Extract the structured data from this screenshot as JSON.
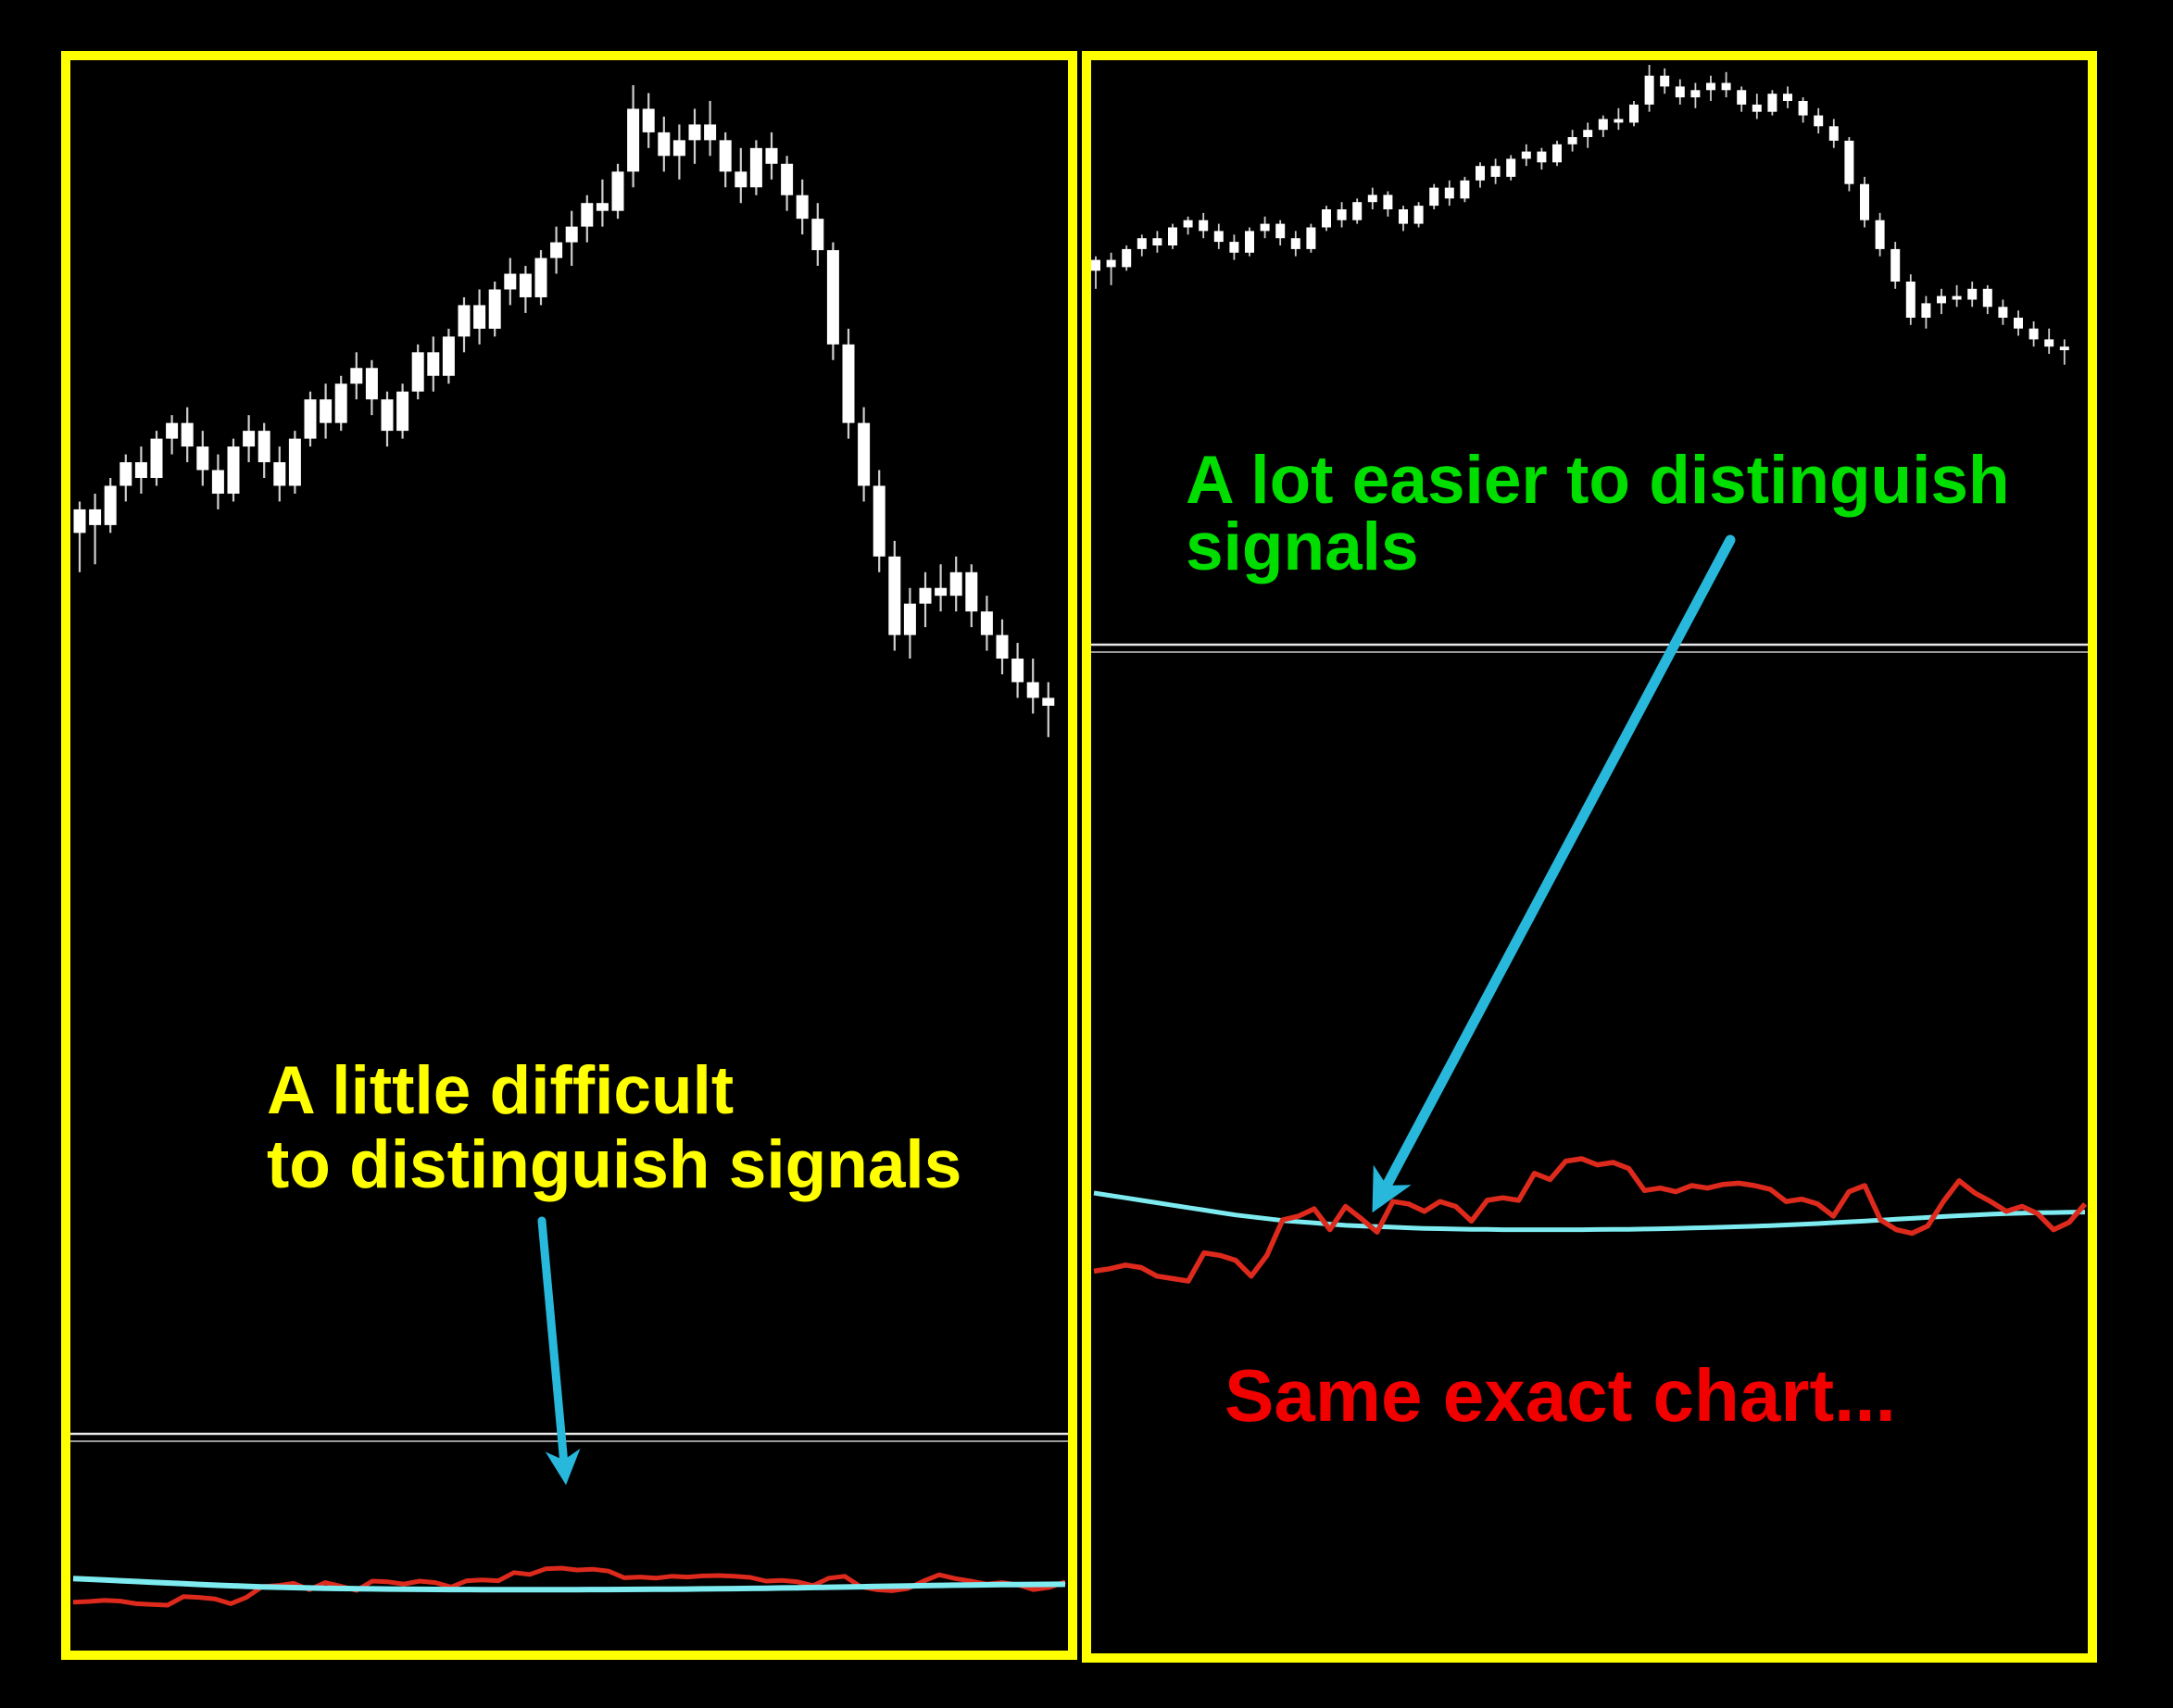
{
  "left_panel": {
    "caption_line1": "A little difficult",
    "caption_line2": "to distinguish signals"
  },
  "right_panel": {
    "caption_line1": "A lot easier to distinguish",
    "caption_line2": "signals",
    "footer": "Same exact chart..."
  },
  "colors": {
    "background": "#000000",
    "panel_border": "#ffff00",
    "candle": "#ffffff",
    "candle_wick": "#cfcfcf",
    "indicator_red": "#de2a1c",
    "indicator_cyan": "#7debf0",
    "arrow_cyan": "#27b8db",
    "separator_light": "#e8e8e8",
    "separator_dark": "#9a9a9a",
    "caption_left": "#ffff00",
    "caption_right": "#00de00",
    "footer_right": "#f20000"
  },
  "chart_data": {
    "type": "candlestick",
    "title": "",
    "note_left": "A little difficult to distinguish signals",
    "note_right": "A lot easier to distinguish signals",
    "note_footer": "Same exact chart...",
    "price_scale": [
      0,
      100
    ],
    "candles": {
      "open": [
        43,
        46,
        44,
        49,
        52,
        50,
        55,
        57,
        54,
        51,
        48,
        54,
        56,
        52,
        49,
        55,
        60,
        57,
        62,
        64,
        60,
        56,
        61,
        66,
        63,
        68,
        72,
        69,
        74,
        76,
        73,
        78,
        80,
        82,
        85,
        84,
        89,
        97,
        94,
        91,
        93,
        95,
        93,
        89,
        87,
        92,
        90,
        86,
        83,
        79,
        67,
        57,
        49,
        40,
        30,
        34,
        36,
        35,
        38,
        33,
        30,
        27,
        24,
        22
      ],
      "high": [
        47,
        48,
        50,
        53,
        54,
        56,
        58,
        59,
        56,
        53,
        55,
        58,
        57,
        54,
        56,
        61,
        62,
        63,
        66,
        65,
        61,
        62,
        67,
        68,
        69,
        73,
        74,
        75,
        78,
        77,
        79,
        82,
        84,
        86,
        88,
        90,
        100,
        99,
        96,
        95,
        97,
        98,
        94,
        92,
        93,
        94,
        91,
        88,
        85,
        80,
        69,
        59,
        51,
        42,
        36,
        38,
        39,
        40,
        39,
        35,
        32,
        29,
        27,
        24
      ],
      "low": [
        38,
        39,
        43,
        47,
        48,
        49,
        53,
        52,
        49,
        46,
        47,
        52,
        50,
        47,
        48,
        54,
        55,
        56,
        60,
        58,
        54,
        55,
        60,
        61,
        62,
        66,
        67,
        68,
        72,
        71,
        72,
        76,
        77,
        80,
        82,
        83,
        87,
        92,
        89,
        88,
        90,
        91,
        87,
        85,
        86,
        88,
        84,
        81,
        77,
        65,
        55,
        47,
        38,
        28,
        27,
        31,
        33,
        33,
        31,
        28,
        25,
        22,
        20,
        17
      ],
      "close": [
        46,
        44,
        49,
        52,
        50,
        55,
        57,
        54,
        51,
        48,
        54,
        56,
        52,
        49,
        55,
        60,
        57,
        62,
        64,
        60,
        56,
        61,
        66,
        63,
        68,
        72,
        69,
        74,
        76,
        73,
        78,
        80,
        82,
        85,
        84,
        89,
        97,
        94,
        91,
        93,
        95,
        93,
        89,
        87,
        92,
        90,
        86,
        83,
        79,
        67,
        57,
        49,
        40,
        30,
        34,
        36,
        35,
        38,
        33,
        30,
        27,
        24,
        22,
        21
      ]
    },
    "indicator": {
      "red": [
        8,
        10,
        13,
        11,
        4,
        2,
        0,
        23,
        21,
        17,
        4,
        21,
        50,
        53,
        59,
        42,
        61,
        51,
        40,
        65,
        63,
        57,
        65,
        61,
        49,
        66,
        68,
        66,
        88,
        83,
        98,
        100,
        95,
        97,
        92,
        74,
        76,
        73,
        78,
        76,
        79,
        80,
        78,
        75,
        65,
        67,
        63,
        53,
        73,
        78,
        50,
        42,
        39,
        45,
        65,
        82,
        72,
        65,
        57,
        61,
        55,
        42,
        48,
        63
      ],
      "cyan": [
        72,
        70,
        68,
        66,
        64,
        62,
        60,
        58,
        56,
        54,
        52.5,
        51,
        49.5,
        48.5,
        47.5,
        46.5,
        45.5,
        45,
        44.5,
        44,
        43.5,
        43,
        42.8,
        42.5,
        42.3,
        42.2,
        42,
        42,
        42,
        42,
        42,
        42,
        42.1,
        42.2,
        42.3,
        42.5,
        42.7,
        43,
        43.3,
        43.6,
        44,
        44.4,
        44.8,
        45.3,
        45.8,
        46.4,
        47,
        47.7,
        48.4,
        49.1,
        49.8,
        50.5,
        51.2,
        52,
        52.7,
        53.4,
        54,
        54.6,
        55.1,
        55.5,
        55.8,
        56,
        56.2,
        56.4
      ]
    },
    "layout_hint": "same series rendered twice: left panel tall vertical scale, right panel compressed vertical scale"
  }
}
